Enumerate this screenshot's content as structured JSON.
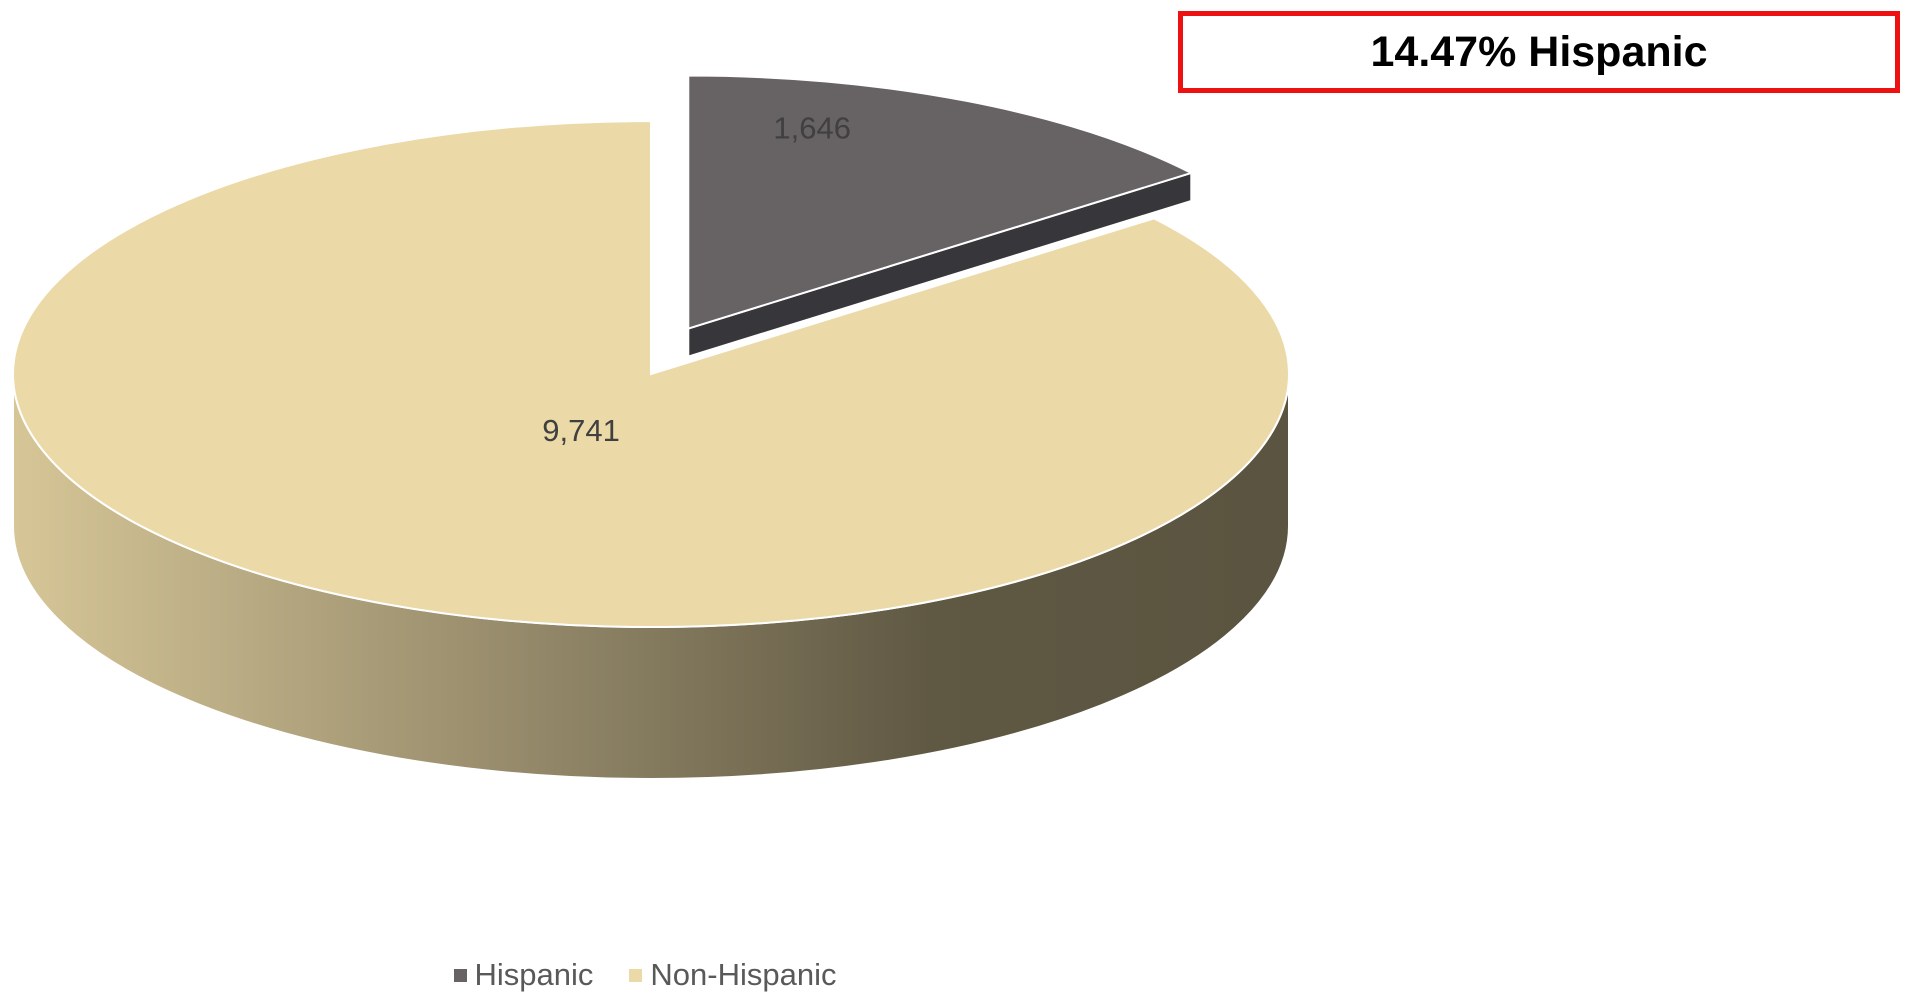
{
  "chart_data": {
    "type": "pie",
    "variant": "3d-exploded",
    "title": "",
    "categories": [
      "Hispanic",
      "Non-Hispanic"
    ],
    "values": [
      1646,
      9741
    ],
    "data_labels": [
      "1,646",
      "9,741"
    ],
    "colors": [
      "#676263",
      "#ebd9a7"
    ],
    "side_colors": [
      "#37363a",
      "#8f845f"
    ],
    "exploded": [
      "Hispanic"
    ],
    "start_angle_deg": 90,
    "legend": {
      "position": "bottom",
      "items": [
        {
          "label": "Hispanic",
          "color": "#676263"
        },
        {
          "label": "Non-Hispanic",
          "color": "#ebd9a7"
        }
      ]
    }
  },
  "callout": {
    "text": "14.47% Hispanic",
    "border_color": "#ee1111"
  }
}
